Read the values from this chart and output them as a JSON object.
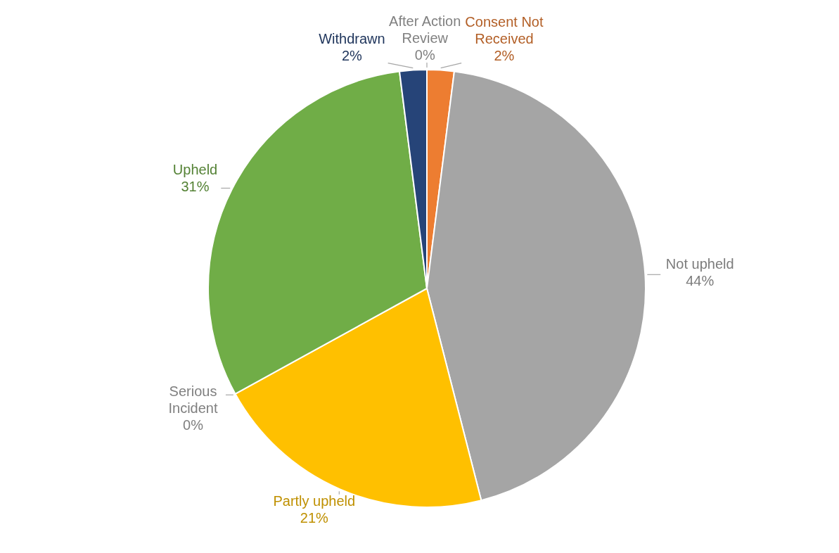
{
  "chart_data": {
    "type": "pie",
    "categories": [
      "Consent Not Received",
      "Not upheld",
      "Partly upheld",
      "Serious Incident",
      "Upheld",
      "Withdrawn",
      "After Action Review"
    ],
    "values": [
      2,
      44,
      21,
      0,
      31,
      2,
      0
    ],
    "value_labels": [
      "2%",
      "44%",
      "21%",
      "0%",
      "31%",
      "2%",
      "0%"
    ],
    "colors": [
      "#ed7d31",
      "#a5a5a5",
      "#ffc000",
      "#a9a9a9",
      "#70ad47",
      "#264478",
      "#aaaaaa"
    ]
  }
}
